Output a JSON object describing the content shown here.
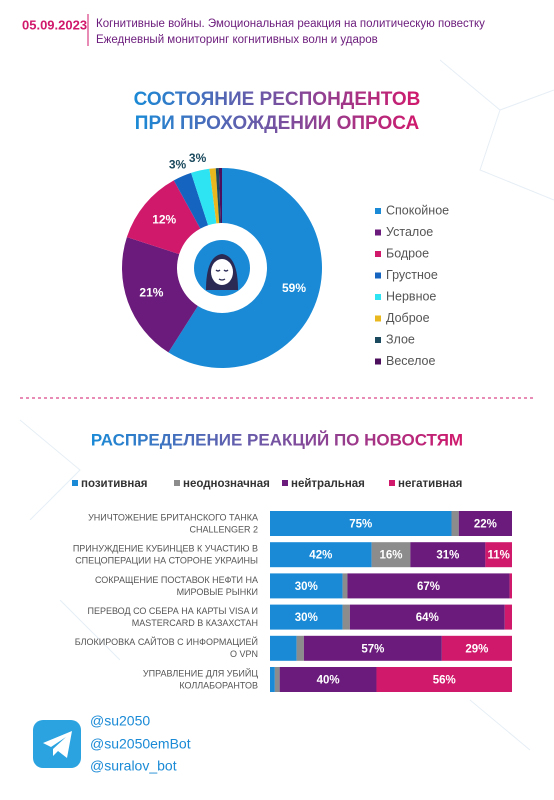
{
  "header": {
    "date": "05.09.2023",
    "lines": [
      "Когнитивные войны. Эмоциональная реакция на политическую повестку",
      "Ежедневный мониторинг когнитивных волн и ударов"
    ]
  },
  "chart_data": [
    {
      "type": "donut",
      "title": [
        "СОСТОЯНИЕ РЕСПОНДЕНТОВ",
        "ПРИ ПРОХОЖДЕНИИ ОПРОСА"
      ],
      "categories": [
        "Спокойное",
        "Усталое",
        "Бодрое",
        "Грустное",
        "Нервное",
        "Доброе",
        "Злое",
        "Веселое"
      ],
      "values": [
        59,
        21,
        12,
        3,
        3,
        1,
        0.5,
        0.5
      ],
      "value_labels": [
        "59%",
        "21%",
        "12%",
        "3%",
        "3%",
        null,
        null,
        null
      ],
      "colors": [
        "#1a8ad6",
        "#6b1b7b",
        "#d1196c",
        "#1565c0",
        "#2ee3f2",
        "#e9b71e",
        "#1b4a5e",
        "#4b0f5e"
      ]
    },
    {
      "type": "stacked-bar",
      "title": "РАСПРЕДЕЛЕНИЕ РЕАКЦИЙ ПО НОВОСТЯМ",
      "categories": [
        [
          "УНИЧТОЖЕНИЕ БРИТАНСКОГО ТАНКА",
          "CHALLENGER 2"
        ],
        [
          "ПРИНУЖДЕНИЕ КУБИНЦЕВ К УЧАСТИЮ В",
          "СПЕЦОПЕРАЦИИ НА СТОРОНЕ УКРАИНЫ"
        ],
        [
          "СОКРАЩЕНИЕ ПОСТАВОК НЕФТИ НА",
          "МИРОВЫЕ РЫНКИ"
        ],
        [
          "ПЕРЕВОД СО СБЕРА НА КАРТЫ VISA И",
          "MASTERCARD В КАЗАХСТАН"
        ],
        [
          "БЛОКИРОВКА САЙТОВ С ИНФОРМАЦИЕЙ",
          "О VPN"
        ],
        [
          "УПРАВЛЕНИЕ ДЛЯ УБИЙЦ",
          "КОЛЛАБОРАНТОВ"
        ]
      ],
      "xlim": [
        0,
        100
      ],
      "series": [
        {
          "name": "позитивная",
          "color": "#1a8ad6",
          "values": [
            75,
            42,
            30,
            30,
            11,
            2
          ],
          "value_labels": [
            "75%",
            "42%",
            "30%",
            "30%",
            null,
            null
          ]
        },
        {
          "name": "неоднозначная",
          "color": "#8c8c8c",
          "values": [
            3,
            16,
            2,
            3,
            3,
            2
          ],
          "value_labels": [
            null,
            "16%",
            null,
            null,
            null,
            null
          ]
        },
        {
          "name": "нейтральная",
          "color": "#6b1b7b",
          "values": [
            22,
            31,
            67,
            64,
            57,
            40
          ],
          "value_labels": [
            "22%",
            "31%",
            "67%",
            "64%",
            "57%",
            "40%"
          ]
        },
        {
          "name": "негативная",
          "color": "#d1196c",
          "values": [
            0,
            11,
            1,
            3,
            29,
            56
          ],
          "value_labels": [
            null,
            "11%",
            null,
            null,
            "29%",
            "56%"
          ]
        }
      ]
    }
  ],
  "footer": {
    "handles": [
      "@su2050",
      "@su2050emBot",
      "@suralov_bot"
    ]
  }
}
